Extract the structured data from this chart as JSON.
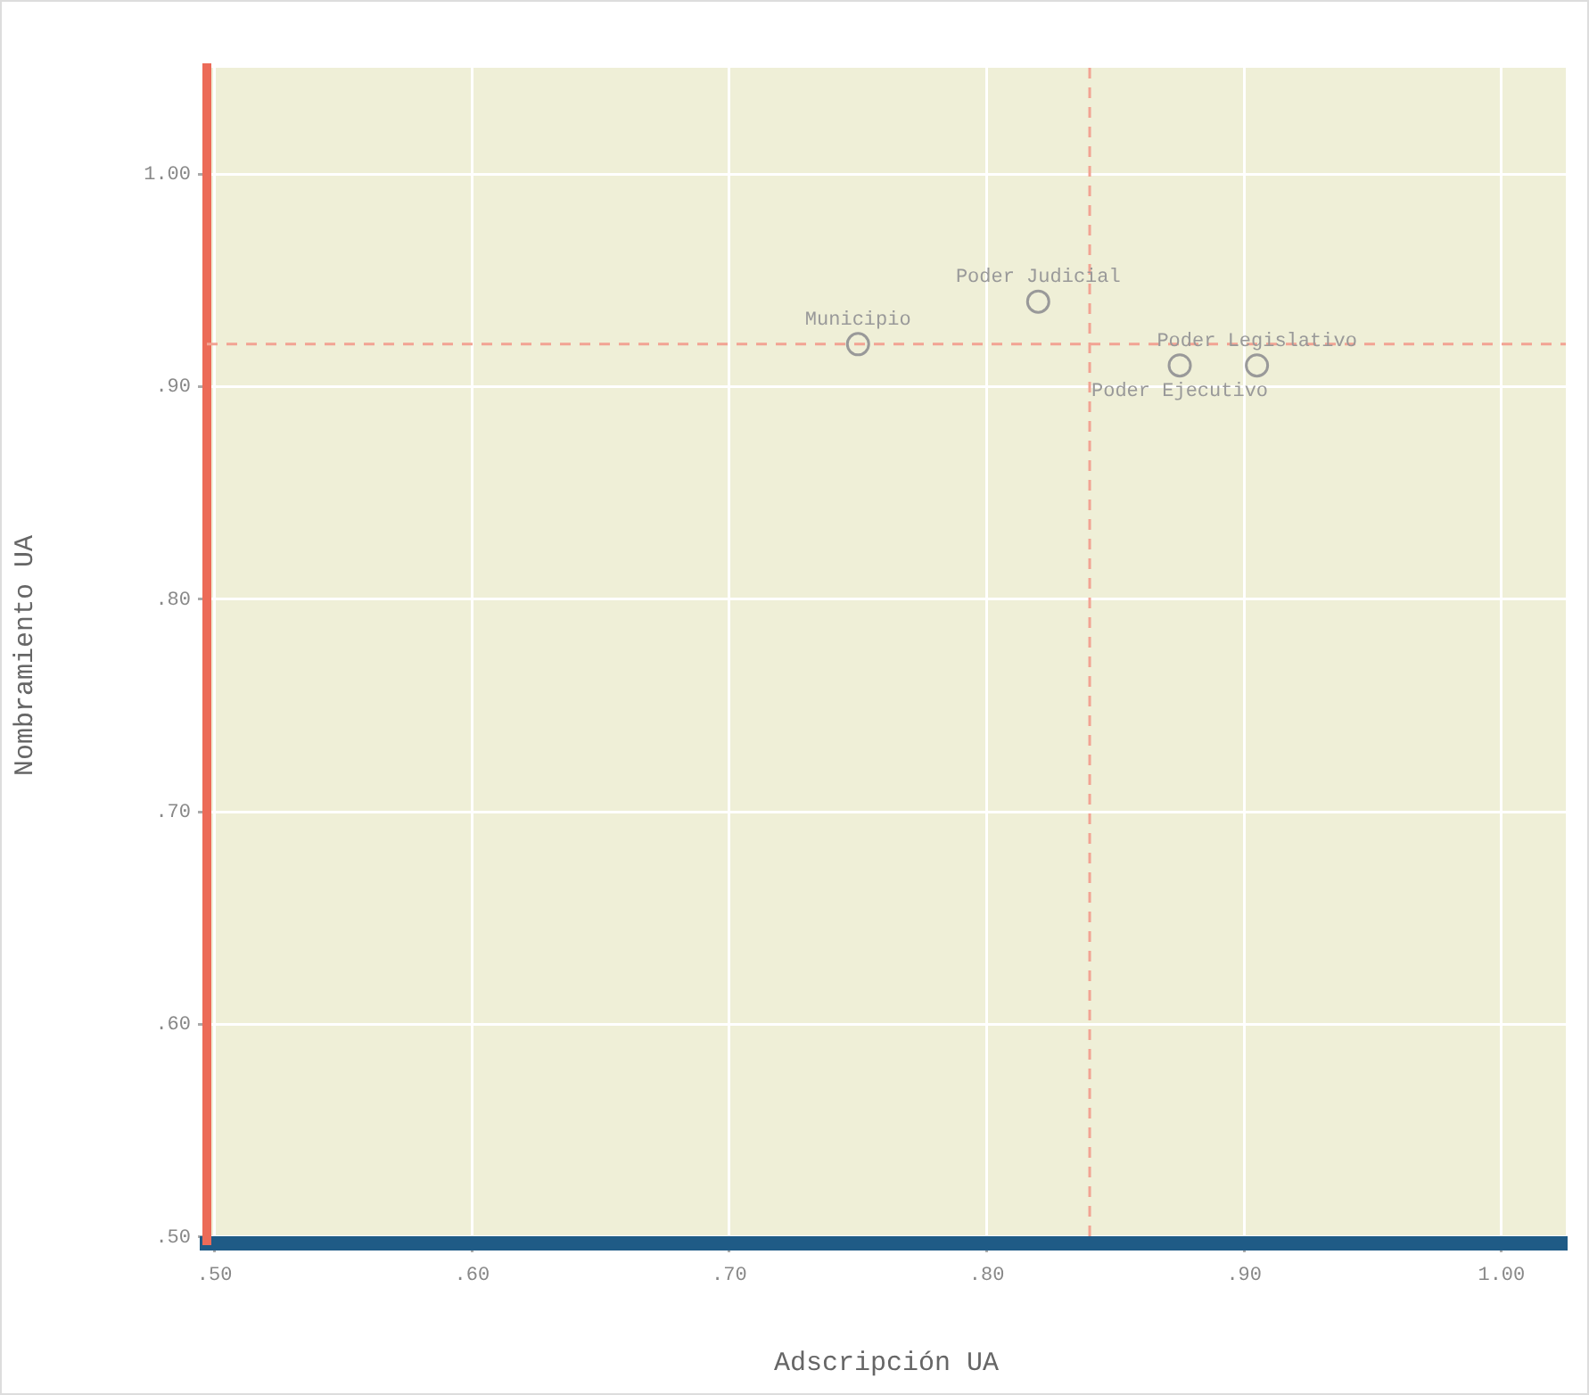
{
  "chart_data": {
    "type": "scatter",
    "xlabel": "Adscripción UA",
    "ylabel": "Nombramiento UA",
    "xlim": [
      0.497,
      1.025
    ],
    "ylim": [
      0.497,
      1.05
    ],
    "xticks": [
      {
        "value": 0.5,
        "label": ".50"
      },
      {
        "value": 0.6,
        "label": ".60"
      },
      {
        "value": 0.7,
        "label": ".70"
      },
      {
        "value": 0.8,
        "label": ".80"
      },
      {
        "value": 0.9,
        "label": ".90"
      },
      {
        "value": 1.0,
        "label": "1.00"
      }
    ],
    "yticks": [
      {
        "value": 0.5,
        "label": ".50"
      },
      {
        "value": 0.6,
        "label": ".60"
      },
      {
        "value": 0.7,
        "label": ".70"
      },
      {
        "value": 0.8,
        "label": ".80"
      },
      {
        "value": 0.9,
        "label": ".90"
      },
      {
        "value": 1.0,
        "label": "1.00"
      }
    ],
    "grid": true,
    "legend": false,
    "marker": "circle",
    "series": [
      {
        "name": "Municipio",
        "color": "#999999",
        "x": [
          0.75
        ],
        "values": [
          0.92
        ]
      },
      {
        "name": "Poder Judicial",
        "color": "#999999",
        "x": [
          0.82
        ],
        "values": [
          0.94
        ]
      },
      {
        "name": "Poder Legislativo",
        "color": "#999999",
        "x": [
          0.905
        ],
        "values": [
          0.91
        ]
      },
      {
        "name": "Poder Ejecutivo",
        "color": "#999999",
        "x": [
          0.875
        ],
        "values": [
          0.91
        ]
      }
    ],
    "ref_lines": [
      {
        "axis": "x",
        "value": 0.84,
        "color": "#f2a393",
        "line_style": "dashed"
      },
      {
        "axis": "y",
        "value": 0.92,
        "color": "#f2a393",
        "line_style": "dashed"
      }
    ]
  }
}
